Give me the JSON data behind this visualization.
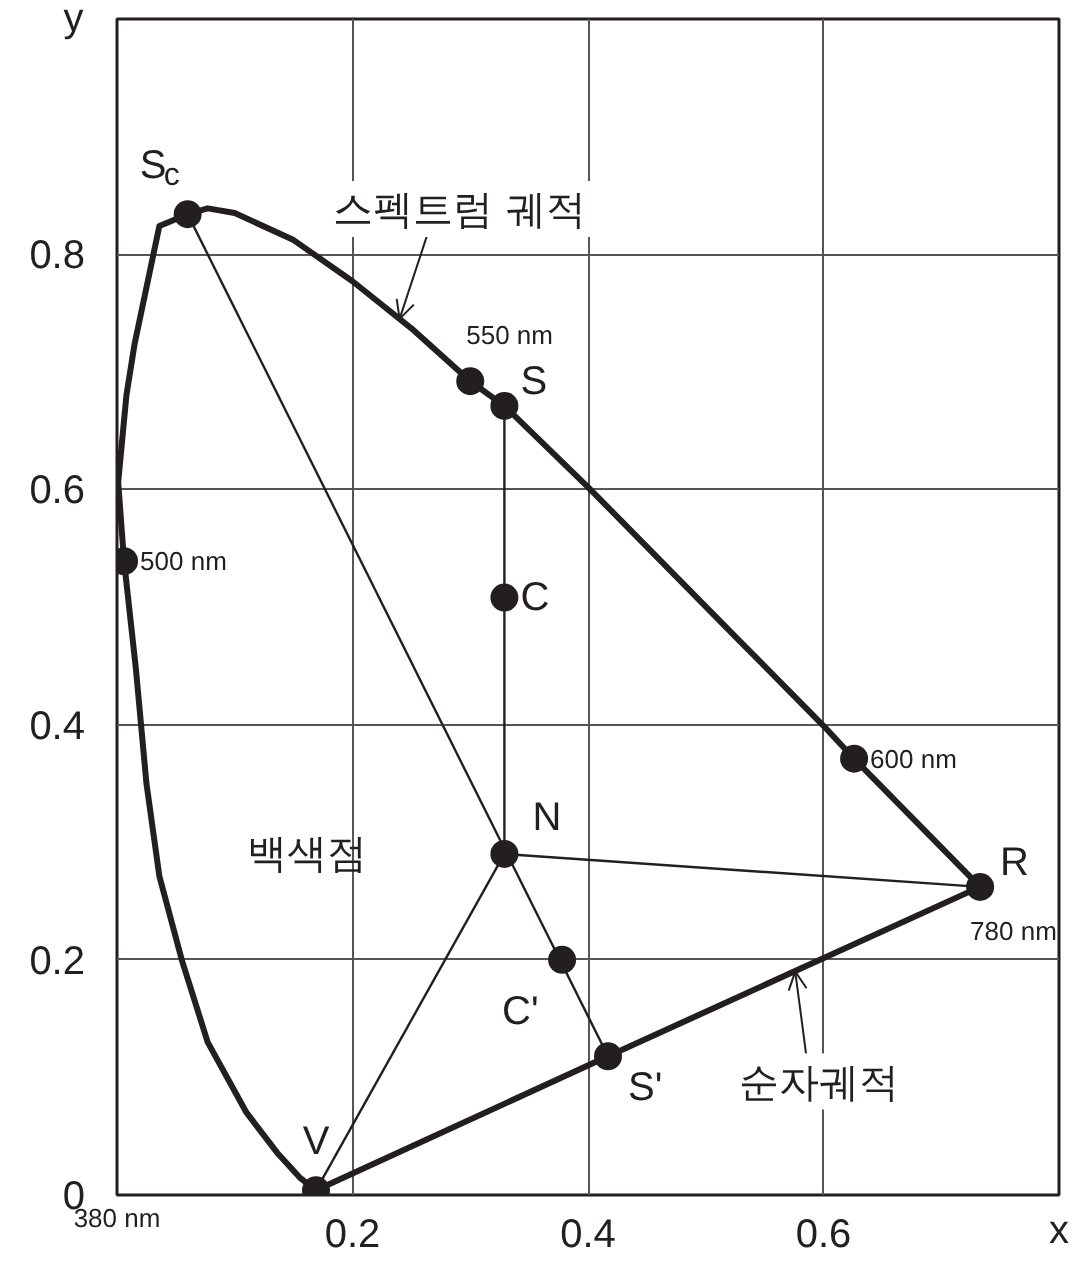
{
  "chart_data": {
    "type": "line",
    "xlabel": "x",
    "ylabel": "y",
    "xlim": [
      0,
      0.8
    ],
    "ylim": [
      0,
      1.0
    ],
    "xticks": [
      0.2,
      0.4,
      0.6
    ],
    "yticks": [
      0,
      0.2,
      0.4,
      0.6,
      0.8
    ],
    "grid": true,
    "line_style": "solid",
    "series": [
      {
        "type": "line",
        "color": "#231f20",
        "x": [
          0.169,
          0.155,
          0.136,
          0.11,
          0.077,
          0.055,
          0.036,
          0.025,
          0.016,
          0.006,
          0.001,
          0.008,
          0.015,
          0.036,
          0.06,
          0.077,
          0.1,
          0.15,
          0.2,
          0.25,
          0.3,
          0.329,
          0.4,
          0.523,
          0.6,
          0.626,
          0.733
        ],
        "values": [
          0.004,
          0.015,
          0.036,
          0.07,
          0.13,
          0.2,
          0.271,
          0.35,
          0.448,
          0.539,
          0.606,
          0.68,
          0.724,
          0.824,
          0.834,
          0.839,
          0.835,
          0.812,
          0.777,
          0.737,
          0.692,
          0.671,
          0.602,
          0.477,
          0.399,
          0.371,
          0.262
        ]
      },
      {
        "type": "line",
        "color": "#231f20",
        "x": [
          0.733,
          0.417,
          0.169
        ],
        "values": [
          0.262,
          0.118,
          0.004
        ]
      },
      {
        "type": "line",
        "color": "#231f20",
        "x": [
          0.06,
          0.417
        ],
        "values": [
          0.834,
          0.118
        ]
      },
      {
        "type": "line",
        "color": "#231f20",
        "x": [
          0.329,
          0.329
        ],
        "values": [
          0.671,
          0.29
        ]
      },
      {
        "type": "line",
        "color": "#231f20",
        "x": [
          0.329,
          0.733
        ],
        "values": [
          0.29,
          0.262
        ]
      },
      {
        "type": "line",
        "color": "#231f20",
        "x": [
          0.169,
          0.329
        ],
        "values": [
          0.004,
          0.29
        ]
      },
      {
        "type": "scatter",
        "color": "#231f20",
        "marker": "circle",
        "x": [
          0.06,
          0.006,
          0.3,
          0.329,
          0.329,
          0.329,
          0.626,
          0.733,
          0.378,
          0.417,
          0.169
        ],
        "values": [
          0.834,
          0.539,
          0.692,
          0.671,
          0.508,
          0.29,
          0.371,
          0.262,
          0.2,
          0.118,
          0.004
        ]
      }
    ],
    "annotations": [
      {
        "text": "스펙트럼 궤적",
        "x": 0.24,
        "y": 0.745
      },
      {
        "text": "순자궤적",
        "x": 0.576,
        "y": 0.19
      },
      "백색점",
      {
        "text": "S$_{c}$",
        "x": 0.06,
        "y": 0.834
      },
      {
        "text": "500 nm",
        "x": 0.006,
        "y": 0.539
      },
      {
        "text": "550 nm",
        "x": 0.3,
        "y": 0.692
      },
      {
        "text": "S",
        "x": 0.329,
        "y": 0.671
      },
      {
        "text": "C",
        "x": 0.329,
        "y": 0.508
      },
      {
        "text": "N",
        "x": 0.329,
        "y": 0.29
      },
      {
        "text": "600 nm",
        "x": 0.626,
        "y": 0.371
      },
      {
        "text": "R",
        "x": 0.733,
        "y": 0.262
      },
      {
        "text": "780 nm",
        "x": 0.733,
        "y": 0.262
      },
      {
        "text": "C'",
        "x": 0.378,
        "y": 0.2
      },
      {
        "text": "S'",
        "x": 0.417,
        "y": 0.118
      },
      {
        "text": "V",
        "x": 0.169,
        "y": 0.004
      },
      "380 nm"
    ]
  }
}
